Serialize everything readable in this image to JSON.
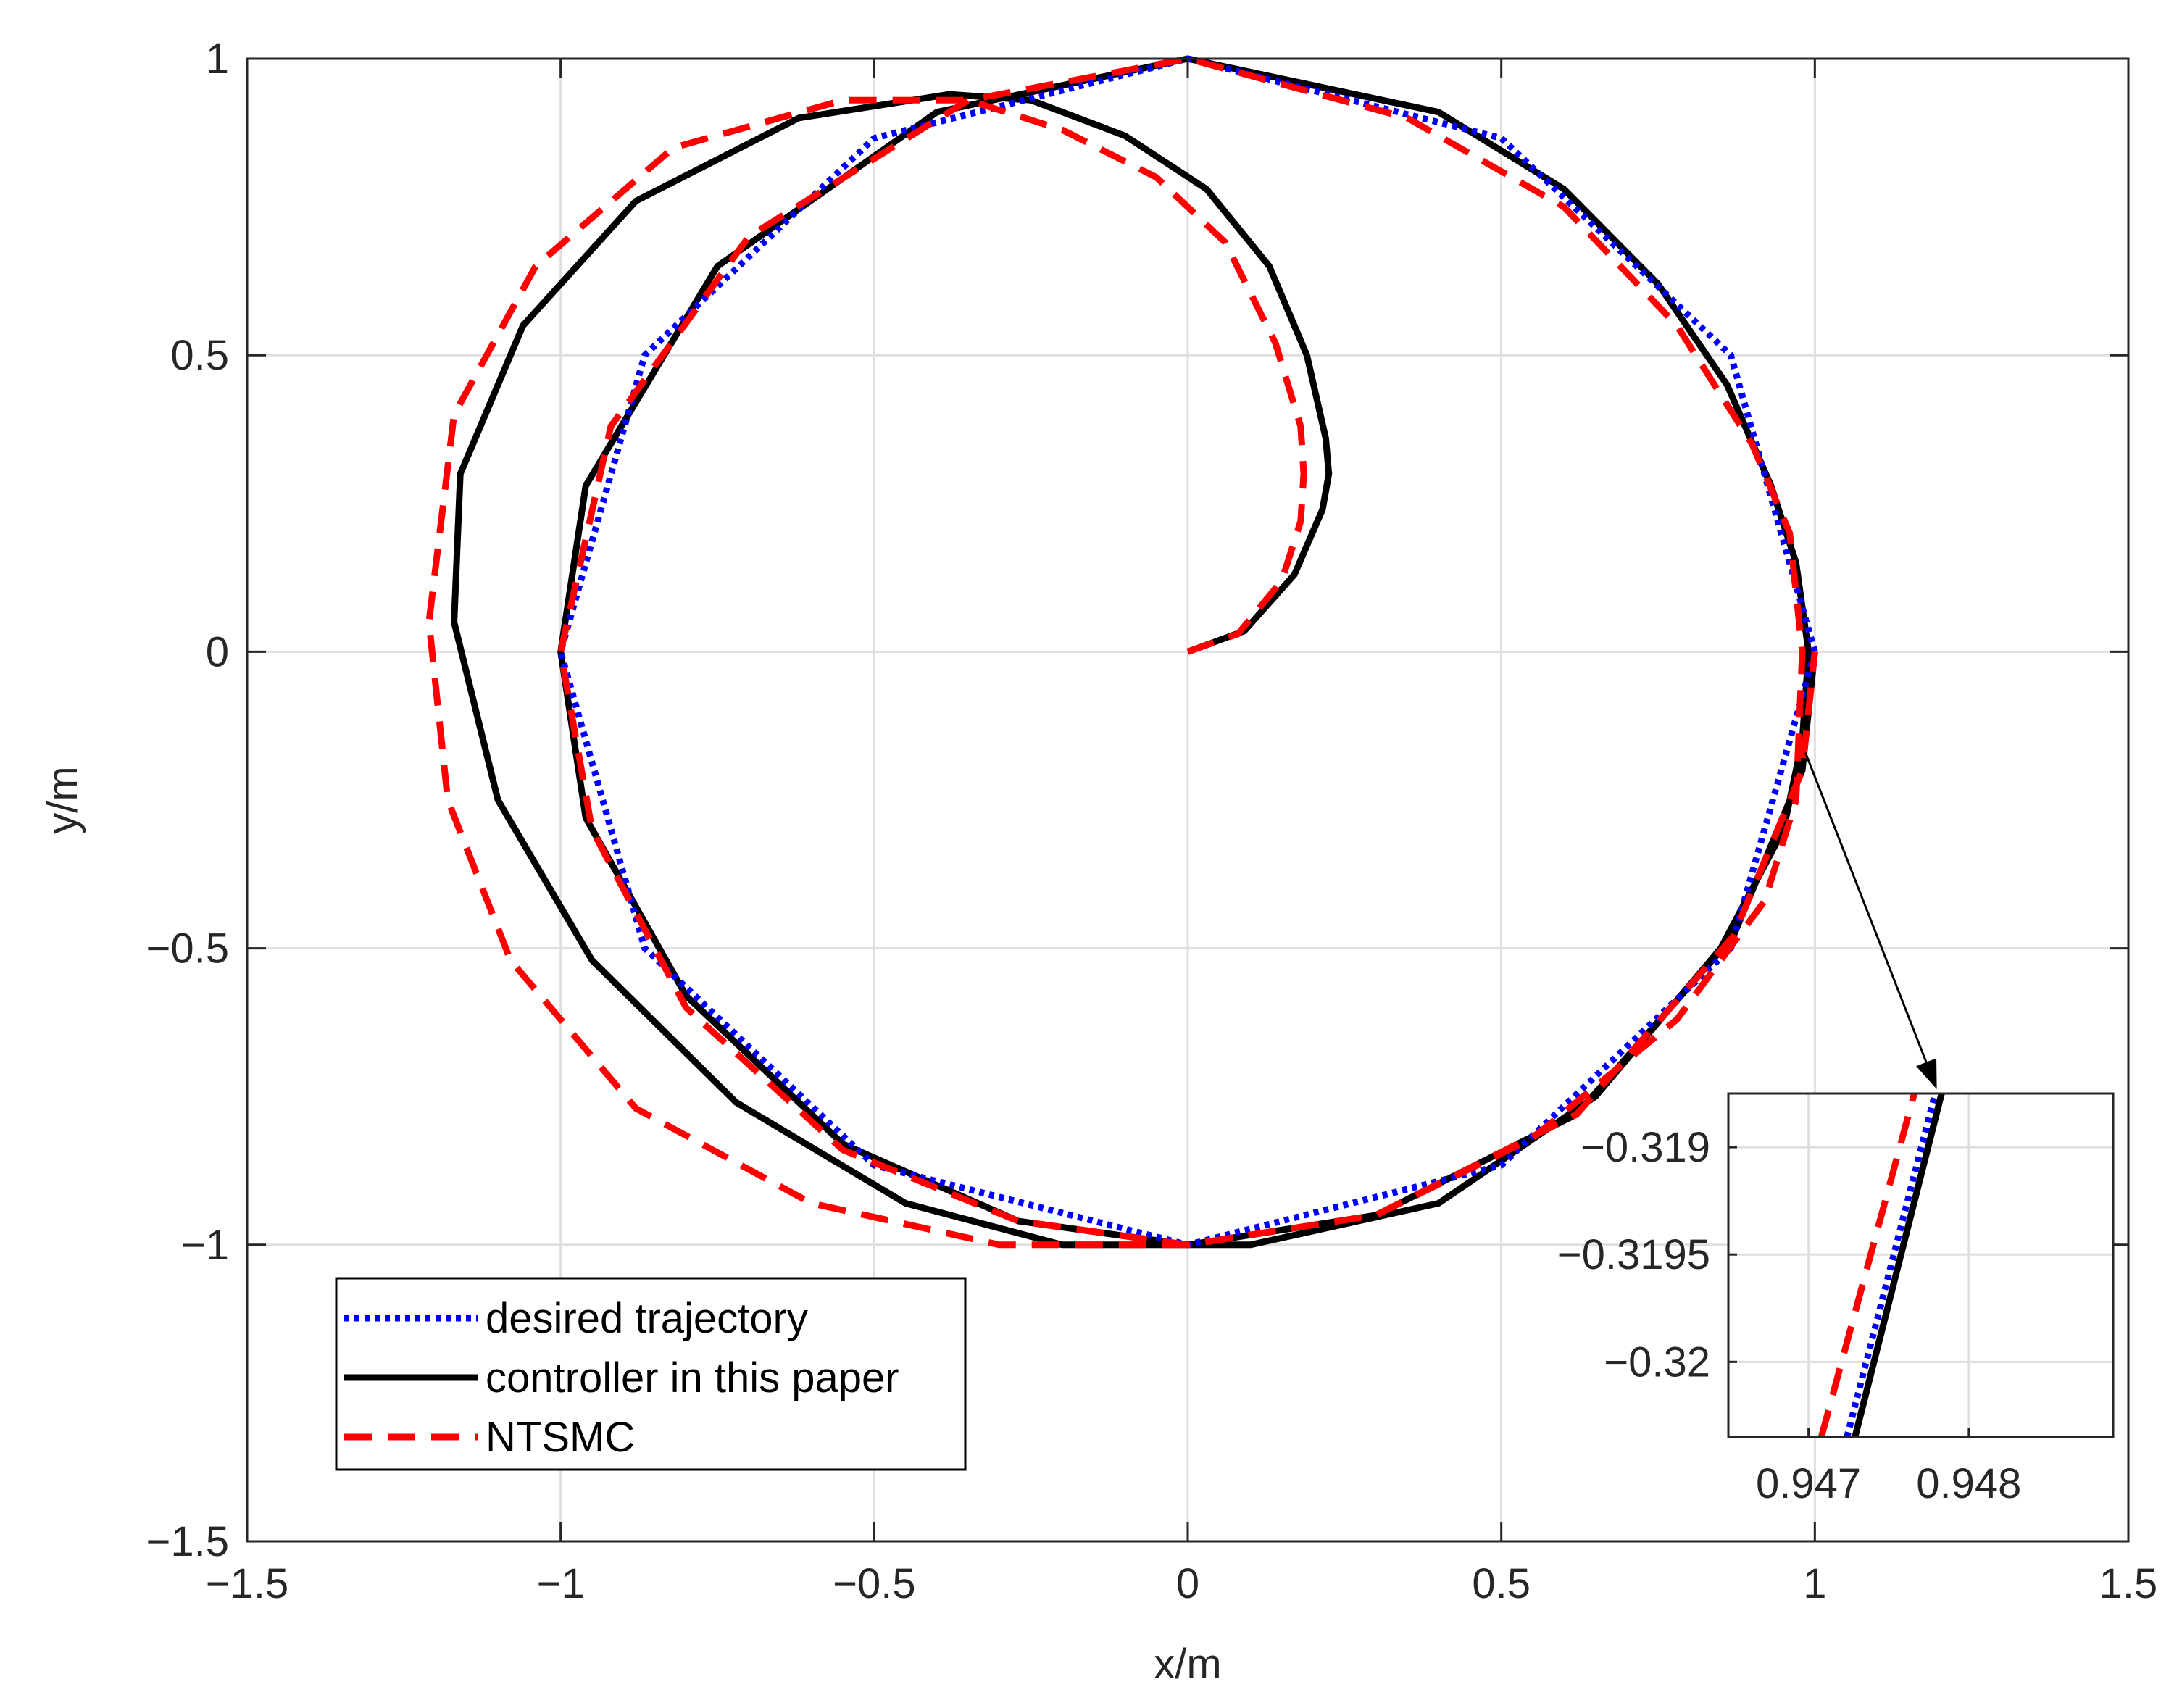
{
  "chart_data": {
    "type": "line",
    "title": "",
    "xlabel": "x/m",
    "ylabel": "y/m",
    "xlim": [
      -1.5,
      1.5
    ],
    "ylim": [
      -1.5,
      1.0
    ],
    "grid": true,
    "x_ticks": [
      -1.5,
      -1,
      -0.5,
      0,
      0.5,
      1,
      1.5
    ],
    "x_tick_labels": [
      "−1.5",
      "−1",
      "−0.5",
      "0",
      "0.5",
      "1",
      "1.5"
    ],
    "y_ticks": [
      -1.5,
      -1,
      -0.5,
      0,
      0.5,
      1
    ],
    "y_tick_labels": [
      "−1.5",
      "−1",
      "−0.5",
      "0",
      "0.5",
      "1"
    ],
    "legend": {
      "location": "bottom-left",
      "entries": [
        "desired trajectory",
        "controller in this paper",
        "NTSMC"
      ]
    },
    "series": [
      {
        "name": "desired trajectory",
        "style": "dotted",
        "color": "#0000ff",
        "x": [
          1.0,
          0.866,
          0.5,
          0.0,
          -0.5,
          -0.866,
          -1.0,
          -0.866,
          -0.5,
          0.0,
          0.5,
          0.866,
          1.0
        ],
        "y": [
          0.0,
          0.5,
          0.866,
          1.0,
          0.866,
          0.5,
          0.0,
          -0.5,
          -0.866,
          -1.0,
          -0.866,
          -0.5,
          0.0
        ]
      },
      {
        "name": "controller in this paper",
        "style": "solid",
        "color": "#000000",
        "x": [
          0.0,
          0.09,
          0.17,
          0.215,
          0.225,
          0.22,
          0.19,
          0.13,
          0.03,
          -0.1,
          -0.25,
          -0.38,
          -0.62,
          -0.88,
          -1.06,
          -1.16,
          -1.17,
          -1.1,
          -0.95,
          -0.72,
          -0.45,
          -0.2,
          0.1,
          0.4,
          0.65,
          0.85,
          0.95,
          0.98,
          0.99,
          0.97,
          0.93,
          0.86,
          0.75,
          0.6,
          0.4,
          0.0,
          -0.4,
          -0.75,
          -0.96,
          -1.0,
          -0.96,
          -0.8,
          -0.55,
          -0.27,
          0.0,
          0.3,
          0.62,
          0.87,
          0.98,
          1.0
        ],
        "y": [
          0.0,
          0.035,
          0.13,
          0.24,
          0.3,
          0.36,
          0.5,
          0.65,
          0.78,
          0.87,
          0.93,
          0.94,
          0.9,
          0.76,
          0.55,
          0.3,
          0.05,
          -0.25,
          -0.52,
          -0.76,
          -0.93,
          -1.0,
          -1.0,
          -0.93,
          -0.75,
          -0.5,
          -0.3,
          -0.15,
          0.0,
          0.15,
          0.28,
          0.45,
          0.62,
          0.78,
          0.91,
          1.0,
          0.91,
          0.65,
          0.28,
          0.0,
          -0.28,
          -0.58,
          -0.83,
          -0.96,
          -1.0,
          -0.95,
          -0.78,
          -0.48,
          -0.2,
          0.0
        ]
      },
      {
        "name": "NTSMC",
        "style": "dashed",
        "color": "#ff0000",
        "x": [
          0.0,
          0.08,
          0.15,
          0.18,
          0.185,
          0.18,
          0.14,
          0.06,
          -0.05,
          -0.2,
          -0.35,
          -0.55,
          -0.82,
          -1.04,
          -1.17,
          -1.21,
          -1.18,
          -1.08,
          -0.88,
          -0.6,
          -0.3,
          0.0,
          0.3,
          0.55,
          0.78,
          0.92,
          0.97,
          0.98,
          0.96,
          0.9,
          0.78,
          0.6,
          0.35,
          0.0,
          -0.35,
          -0.7,
          -0.92,
          -1.0,
          -0.95,
          -0.8,
          -0.55,
          -0.27,
          0.0,
          0.3,
          0.62,
          0.87,
          0.98,
          1.0
        ],
        "y": [
          0.0,
          0.03,
          0.12,
          0.22,
          0.3,
          0.38,
          0.52,
          0.69,
          0.8,
          0.88,
          0.93,
          0.93,
          0.85,
          0.65,
          0.4,
          0.05,
          -0.25,
          -0.52,
          -0.77,
          -0.93,
          -1.0,
          -1.0,
          -0.95,
          -0.82,
          -0.62,
          -0.42,
          -0.25,
          0.0,
          0.2,
          0.35,
          0.55,
          0.75,
          0.9,
          1.0,
          0.93,
          0.7,
          0.38,
          0.0,
          -0.3,
          -0.6,
          -0.84,
          -0.96,
          -1.0,
          -0.95,
          -0.78,
          -0.48,
          -0.2,
          0.0
        ]
      }
    ],
    "inset": {
      "xlim": [
        0.9465,
        0.9489
      ],
      "ylim": [
        -0.32035,
        -0.31875
      ],
      "x_ticks": [
        0.947,
        0.948
      ],
      "x_tick_labels": [
        "0.947",
        "0.948"
      ],
      "y_ticks": [
        -0.319,
        -0.3195,
        -0.32
      ],
      "y_tick_labels": [
        "−0.319",
        "−0.3195",
        "−0.32"
      ],
      "grid": true,
      "series": [
        {
          "name": "desired trajectory",
          "style": "dotted",
          "color": "#0000ff",
          "x": [
            0.94724,
            0.94779
          ],
          "y": [
            -0.32035,
            -0.31875
          ]
        },
        {
          "name": "controller in this paper",
          "style": "solid",
          "color": "#000000",
          "x": [
            0.94729,
            0.94783
          ],
          "y": [
            -0.32035,
            -0.31875
          ]
        },
        {
          "name": "NTSMC",
          "style": "dashed",
          "color": "#ff0000",
          "x": [
            0.94708,
            0.94766
          ],
          "y": [
            -0.32035,
            -0.31875
          ]
        }
      ],
      "annotation_arrow_from": [
        0.985,
        -0.17
      ],
      "annotation_arrow_to": [
        0.9478,
        -0.31875
      ]
    }
  }
}
